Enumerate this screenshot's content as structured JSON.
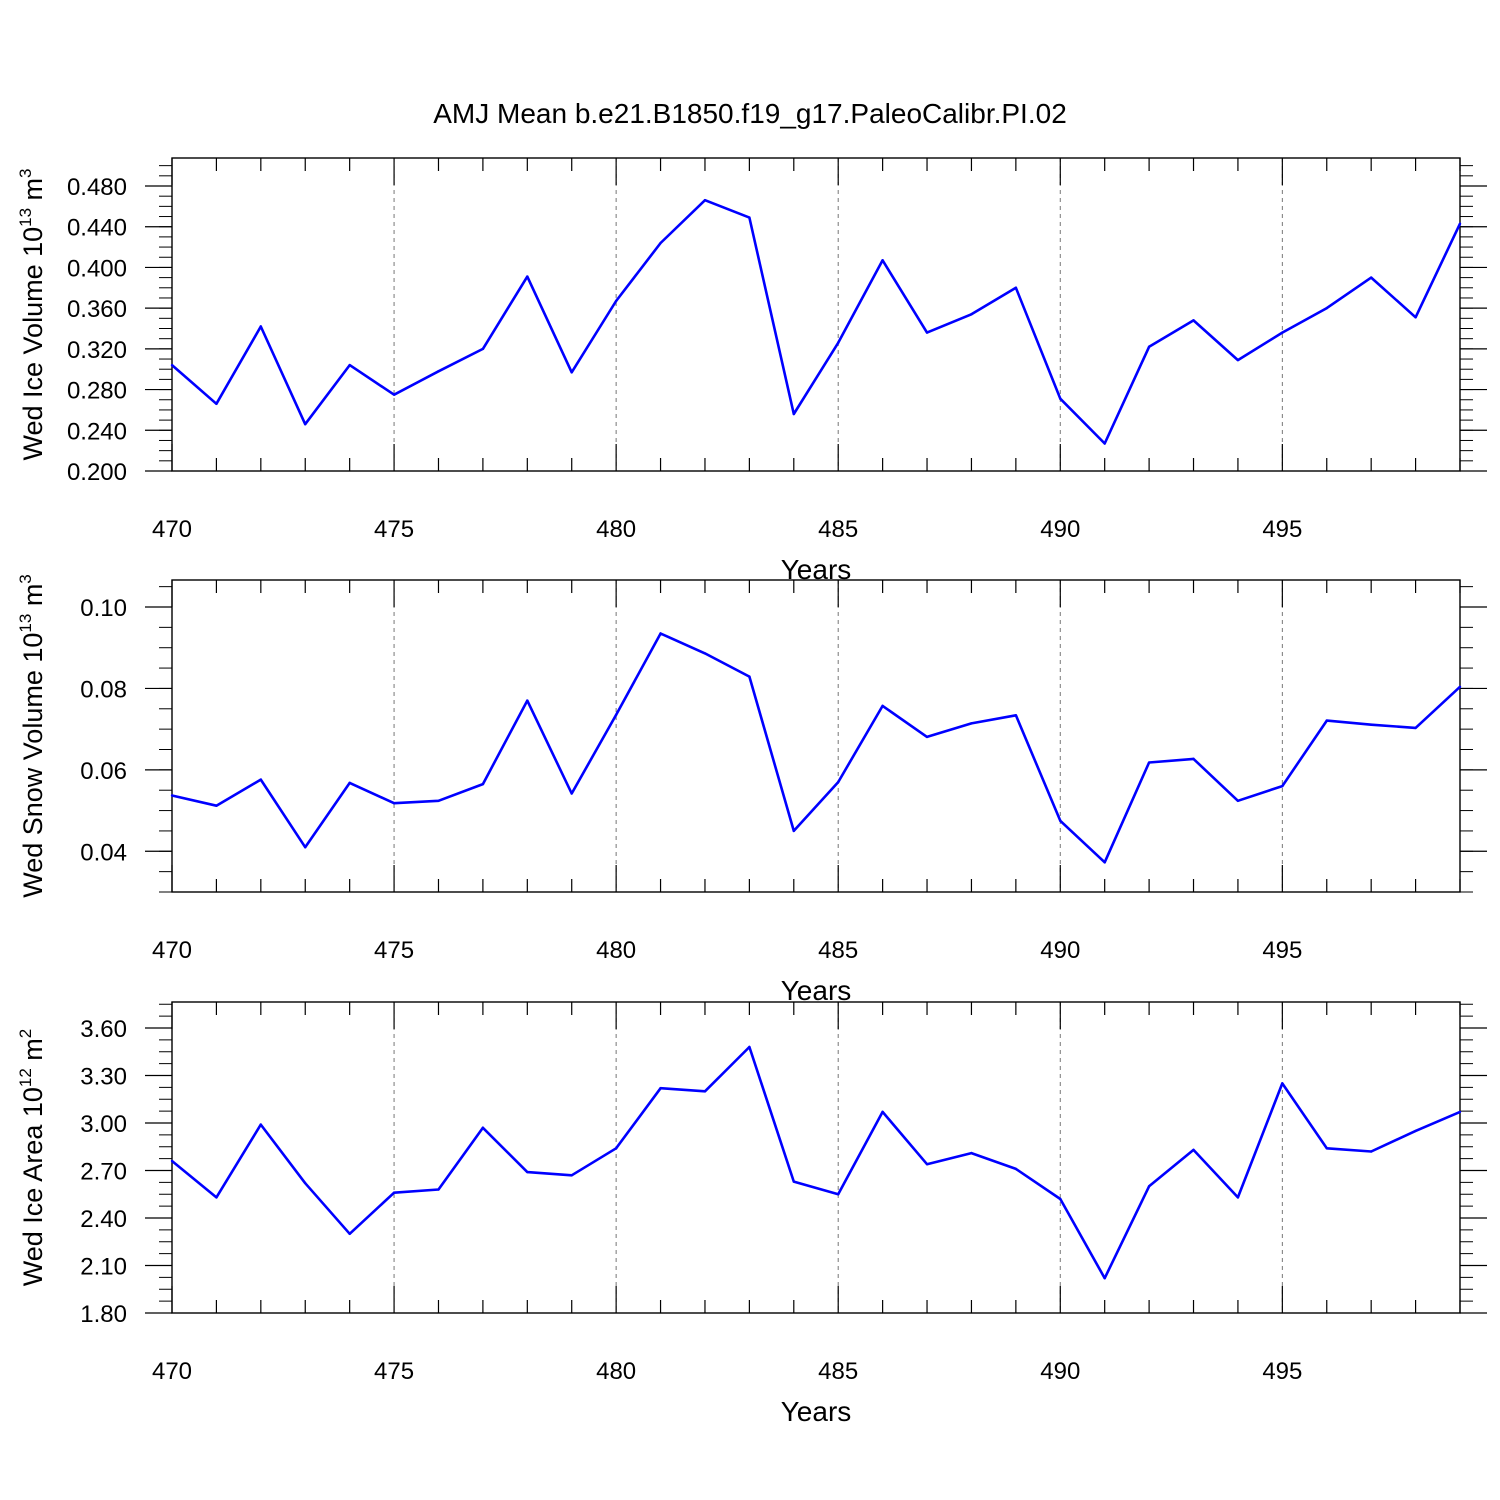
{
  "chart_data": {
    "title": "AMJ Mean b.e21.B1850.f19_g17.PaleoCalibr.PI.02",
    "panels": [
      {
        "type": "line",
        "ylabel": {
          "text": "Wed Ice Volume 10",
          "sup": "13",
          "unit": "m",
          "unit_sup": "3"
        },
        "xlabel": "Years",
        "xlim": [
          470,
          499
        ],
        "ylim": [
          0.2,
          0.5
        ],
        "x_ticks": [
          470,
          475,
          480,
          485,
          490,
          495
        ],
        "y_ticks": [
          "0.200",
          "0.240",
          "0.280",
          "0.320",
          "0.360",
          "0.400",
          "0.440",
          "0.480"
        ],
        "y_tick_values": [
          0.2,
          0.24,
          0.28,
          0.32,
          0.36,
          0.4,
          0.44,
          0.48
        ],
        "y_minor_step": 0.01,
        "grid": "vertical dashed at major x ticks",
        "series": [
          {
            "color": "#0000ff",
            "x": [
              470,
              471,
              472,
              473,
              474,
              475,
              476,
              477,
              478,
              479,
              480,
              481,
              482,
              483,
              484,
              485,
              486,
              487,
              488,
              489,
              490,
              491,
              492,
              493,
              494,
              495,
              496,
              497,
              498,
              499
            ],
            "values": [
              0.304,
              0.266,
              0.342,
              0.246,
              0.304,
              0.275,
              0.298,
              0.32,
              0.391,
              0.297,
              0.367,
              0.424,
              0.466,
              0.449,
              0.256,
              0.326,
              0.407,
              0.336,
              0.354,
              0.38,
              0.271,
              0.227,
              0.322,
              0.348,
              0.309,
              0.336,
              0.36,
              0.39,
              0.351,
              0.443
            ]
          }
        ]
      },
      {
        "type": "line",
        "ylabel": {
          "text": "Wed Snow Volume 10",
          "sup": "13",
          "unit": "m",
          "unit_sup": "3"
        },
        "xlabel": "Years",
        "xlim": [
          470,
          499
        ],
        "ylim": [
          0.03,
          0.106
        ],
        "x_ticks": [
          470,
          475,
          480,
          485,
          490,
          495
        ],
        "y_ticks": [
          "0.04",
          "0.06",
          "0.08",
          "0.10"
        ],
        "y_tick_values": [
          0.04,
          0.06,
          0.08,
          0.1
        ],
        "y_minor_step": 0.005,
        "grid": "vertical dashed at major x ticks",
        "series": [
          {
            "color": "#0000ff",
            "x": [
              470,
              471,
              472,
              473,
              474,
              475,
              476,
              477,
              478,
              479,
              480,
              481,
              482,
              483,
              484,
              485,
              486,
              487,
              488,
              489,
              490,
              491,
              492,
              493,
              494,
              495,
              496,
              497,
              498,
              499
            ],
            "values": [
              0.0537,
              0.0512,
              0.0576,
              0.041,
              0.0568,
              0.0518,
              0.0524,
              0.0565,
              0.077,
              0.0542,
              0.0735,
              0.0935,
              0.0886,
              0.0829,
              0.045,
              0.057,
              0.0757,
              0.0681,
              0.0714,
              0.0734,
              0.0475,
              0.0373,
              0.0618,
              0.0627,
              0.0524,
              0.056,
              0.0721,
              0.0711,
              0.0703,
              0.0804
            ]
          }
        ]
      },
      {
        "type": "line",
        "ylabel": {
          "text": "Wed Ice Area 10",
          "sup": "12",
          "unit": "m",
          "unit_sup": "2"
        },
        "xlabel": "Years",
        "xlim": [
          470,
          499
        ],
        "ylim": [
          1.8,
          3.76
        ],
        "x_ticks": [
          470,
          475,
          480,
          485,
          490,
          495
        ],
        "y_ticks": [
          "1.80",
          "2.10",
          "2.40",
          "2.70",
          "3.00",
          "3.30",
          "3.60"
        ],
        "y_tick_values": [
          1.8,
          2.1,
          2.4,
          2.7,
          3.0,
          3.3,
          3.6
        ],
        "y_minor_step": 0.075,
        "grid": "vertical dashed at major x ticks",
        "series": [
          {
            "color": "#0000ff",
            "x": [
              470,
              471,
              472,
              473,
              474,
              475,
              476,
              477,
              478,
              479,
              480,
              481,
              482,
              483,
              484,
              485,
              486,
              487,
              488,
              489,
              490,
              491,
              492,
              493,
              494,
              495,
              496,
              497,
              498,
              499
            ],
            "values": [
              2.76,
              2.53,
              2.99,
              2.62,
              2.3,
              2.56,
              2.58,
              2.97,
              2.69,
              2.67,
              2.84,
              3.22,
              3.2,
              3.48,
              2.63,
              2.55,
              3.07,
              2.74,
              2.81,
              2.71,
              2.52,
              2.02,
              2.6,
              2.83,
              2.53,
              3.25,
              2.84,
              2.82,
              2.95,
              3.07
            ]
          }
        ]
      }
    ]
  }
}
